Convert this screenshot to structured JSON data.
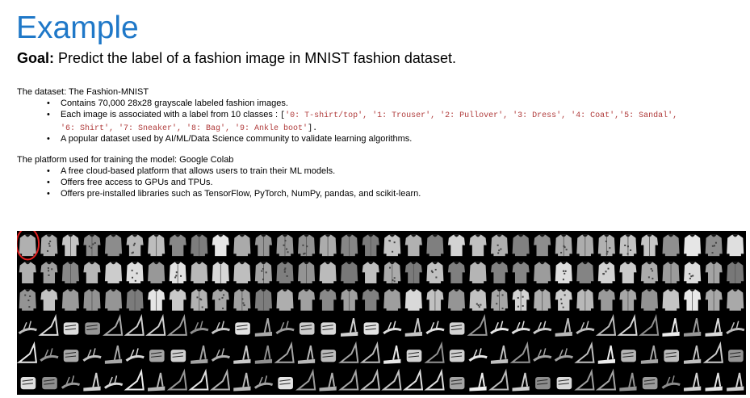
{
  "slide": {
    "title": "Example",
    "goal_label": "Goal:",
    "goal_text": " Predict the label of a fashion image in MNIST fashion dataset."
  },
  "dataset": {
    "heading": "The dataset: The Fashion-MNIST",
    "bullet_1": "Contains 70,000 28x28 grayscale labeled fashion images.",
    "bullet_2_text": "Each image is associated with a label from 10 classes : ",
    "classes_open": "[",
    "classes_line1": "'0: T-shirt/top', '1: Trouser', '2: Pullover', '3: Dress', '4: Coat','5: Sandal',",
    "classes_line2": "'6: Shirt', '7: Sneaker', '8: Bag', '9: Ankle boot'",
    "classes_close": "].",
    "bullet_3": "A popular dataset used by AI/ML/Data Science community to validate learning algorithms."
  },
  "platform": {
    "heading": "The platform used for training the model: Google Colab",
    "bullet_1": "A free cloud-based platform that allows users to train their ML models.",
    "bullet_2": "Offers free access to GPUs and TPUs.",
    "bullet_3": "Offers pre-installed libraries such as TensorFlow, PyTorch, NumPy, pandas, and scikit-learn."
  },
  "bullet_char": "•",
  "colors": {
    "title": "#1f78c8",
    "class_list": "#b03b3b",
    "highlight_circle": "#e02020"
  },
  "mosaic": {
    "rows": [
      "top",
      "top",
      "top",
      "sandal",
      "sandal",
      "sandal"
    ],
    "columns": 34,
    "highlighted_cell": [
      0,
      0
    ]
  }
}
